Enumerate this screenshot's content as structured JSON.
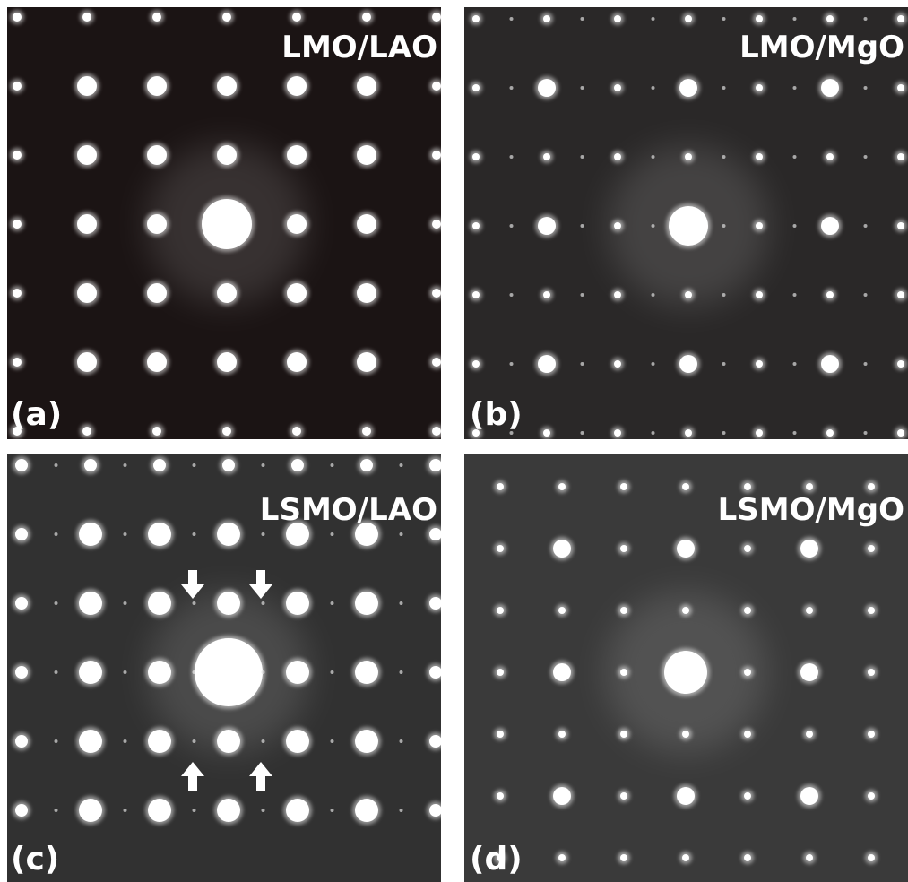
{
  "panels": [
    {
      "label": "(a)",
      "title": "LMO/LAO"
    },
    {
      "label": "(b)",
      "title": "LMO/MgO"
    },
    {
      "label": "(c)",
      "title": "LSMO/LAO"
    },
    {
      "label": "(d)",
      "title": "LSMO/MgO"
    }
  ]
}
